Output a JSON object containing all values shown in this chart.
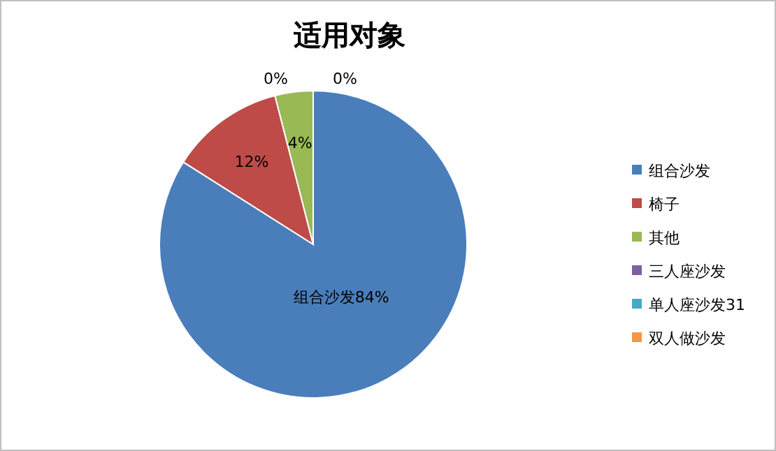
{
  "chart_data": {
    "type": "pie",
    "title": "适用对象",
    "categories": [
      "组合沙发",
      "椅子",
      "其他",
      "三人座沙发",
      "单人座沙发31",
      "双人做沙发"
    ],
    "values": [
      84,
      12,
      4,
      0,
      0,
      0
    ],
    "colors": [
      "#4a7ebb",
      "#be4b48",
      "#98b954",
      "#7d60a0",
      "#46aac5",
      "#f79646"
    ],
    "value_labels": [
      "组合沙发84%",
      "12%",
      "4%",
      "0%",
      "0%",
      null
    ],
    "legend": "right"
  }
}
